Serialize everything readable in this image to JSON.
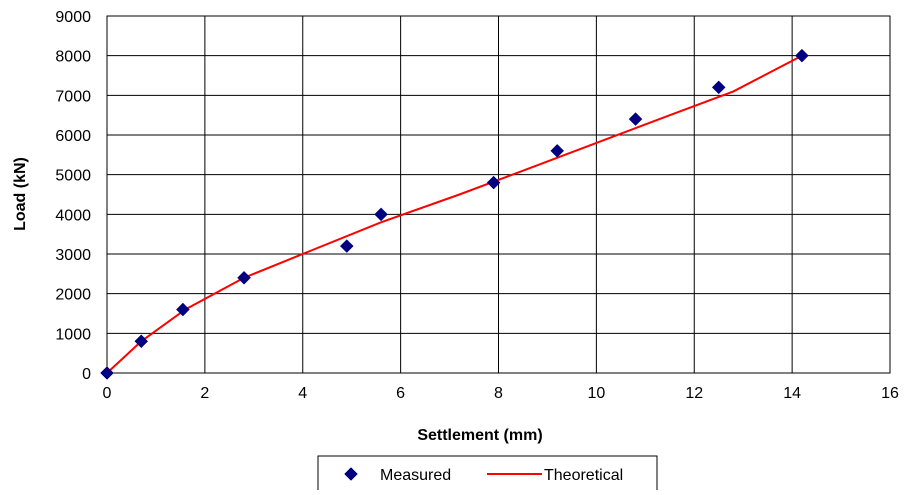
{
  "chart_data": {
    "type": "scatter",
    "title": "",
    "xlabel": "Settlement (mm)",
    "ylabel": "Load (kN)",
    "xlim": [
      0,
      16
    ],
    "ylim": [
      0,
      9000
    ],
    "xticks": [
      0,
      2,
      4,
      6,
      8,
      10,
      12,
      14,
      16
    ],
    "yticks": [
      0,
      1000,
      2000,
      3000,
      4000,
      5000,
      6000,
      7000,
      8000,
      9000
    ],
    "grid": true,
    "legend_position": "bottom",
    "series": [
      {
        "name": "Measured",
        "type": "scatter",
        "marker": "diamond",
        "color": "#000080",
        "x": [
          0,
          0.7,
          1.55,
          2.8,
          4.9,
          5.6,
          7.9,
          9.2,
          10.8,
          12.5,
          14.2
        ],
        "y": [
          0,
          800,
          1600,
          2400,
          3200,
          4000,
          4800,
          5600,
          6400,
          7200,
          8000
        ]
      },
      {
        "name": "Theoretical",
        "type": "line",
        "color": "#ff0000",
        "x": [
          0,
          0.7,
          1.6,
          2.8,
          4.2,
          5.6,
          7.2,
          8.5,
          10.0,
          11.5,
          12.8,
          14.2
        ],
        "y": [
          0,
          800,
          1600,
          2400,
          3100,
          3800,
          4500,
          5100,
          5800,
          6500,
          7100,
          8000
        ]
      }
    ]
  }
}
